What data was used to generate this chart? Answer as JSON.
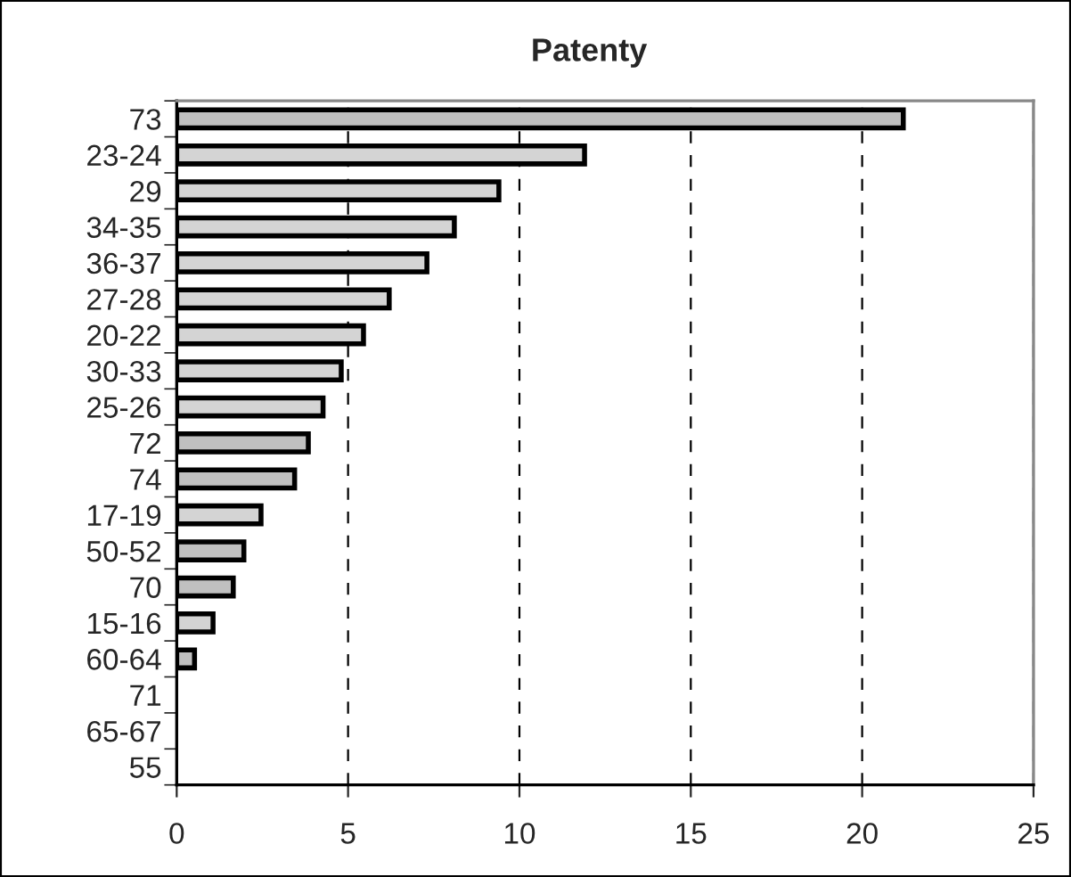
{
  "chart_data": {
    "type": "bar",
    "title": "Patenty",
    "orientation": "horizontal",
    "categories": [
      "73",
      "23-24",
      "29",
      "34-35",
      "36-37",
      "27-28",
      "20-22",
      "30-33",
      "25-26",
      "72",
      "74",
      "17-19",
      "50-52",
      "70",
      "15-16",
      "60-64",
      "71",
      "65-67",
      "55"
    ],
    "values": [
      21.2,
      11.9,
      9.4,
      8.1,
      7.3,
      6.2,
      5.45,
      4.8,
      4.27,
      3.84,
      3.44,
      2.46,
      1.96,
      1.65,
      1.06,
      0.52,
      0,
      0,
      0
    ],
    "colors": [
      "#c0c0c0",
      "#d4d4d4",
      "#d4d4d4",
      "#d4d4d4",
      "#d4d4d4",
      "#d4d4d4",
      "#d4d4d4",
      "#d4d4d4",
      "#d4d4d4",
      "#c0c0c0",
      "#c0c0c0",
      "#d4d4d4",
      "#c0c0c0",
      "#c0c0c0",
      "#d4d4d4",
      "#c0c0c0",
      "#c0c0c0",
      "#c0c0c0",
      "#c0c0c0"
    ],
    "xlim": [
      0,
      25
    ],
    "xticks": [
      0,
      5,
      10,
      15,
      20,
      25
    ],
    "grid": "x",
    "legend": false
  }
}
